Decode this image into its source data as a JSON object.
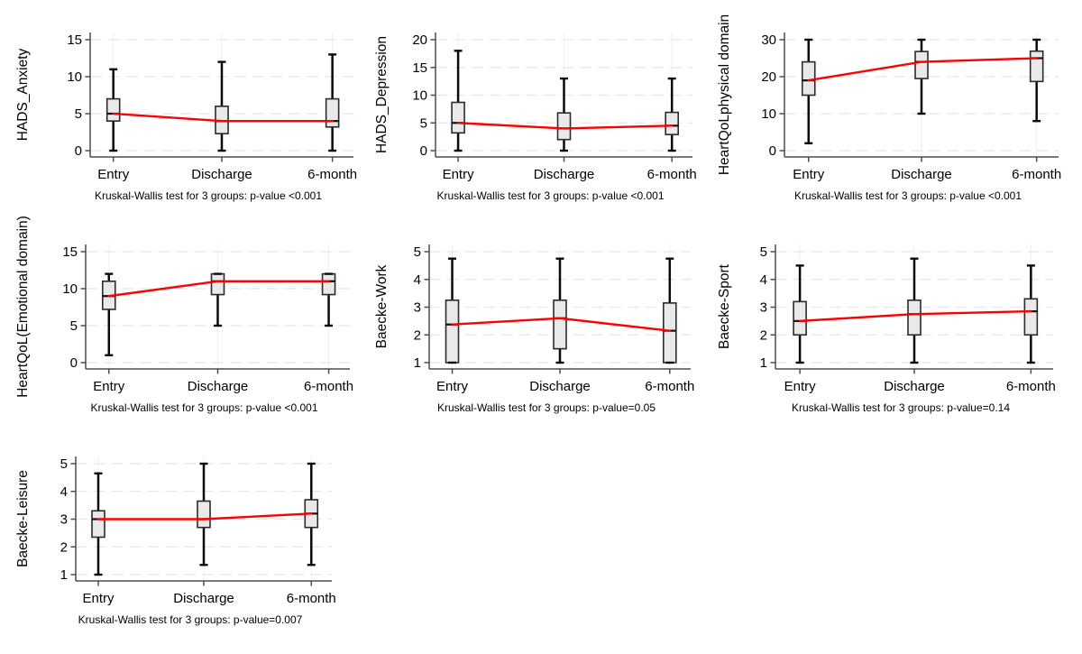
{
  "page": {
    "background": "#ffffff"
  },
  "colors": {
    "box_fill": "#e9e9e9",
    "box_stroke": "#2b2b2b",
    "whisker": "#0a0a0a",
    "median": "#111111",
    "median_trend": "#ff0000",
    "grid_horizontal": "#e7e7e7",
    "grid_vertical": "#efefef",
    "axis": "#4d4d4d",
    "text": "#000000"
  },
  "chart_data": [
    {
      "type": "boxplot",
      "ylabel": "HADS_Anxiety",
      "categories": [
        "Entry",
        "Discharge",
        "6-month"
      ],
      "yticks": [
        0,
        5,
        10,
        15
      ],
      "ylim": [
        -0.9,
        16
      ],
      "grid": true,
      "caption": "Kruskal-Wallis test for 3 groups: p-value <0.001",
      "boxes": [
        {
          "category": "Entry",
          "low": 0,
          "q1": 4,
          "median": 5,
          "q3": 7,
          "high": 11
        },
        {
          "category": "Discharge",
          "low": 0,
          "q1": 2.3,
          "median": 4,
          "q3": 6,
          "high": 12
        },
        {
          "category": "6-month",
          "low": 0,
          "q1": 3.2,
          "median": 4,
          "q3": 7,
          "high": 13
        }
      ],
      "median_trend": [
        5,
        4,
        4
      ]
    },
    {
      "type": "boxplot",
      "ylabel": "HADS_Depression",
      "categories": [
        "Entry",
        "Discharge",
        "6-month"
      ],
      "yticks": [
        0,
        5,
        10,
        15,
        20
      ],
      "ylim": [
        -1.2,
        21.3
      ],
      "grid": true,
      "caption": "Kruskal-Wallis test for 3 groups: p-value <0.001",
      "boxes": [
        {
          "category": "Entry",
          "low": 0,
          "q1": 3.2,
          "median": 5,
          "q3": 8.7,
          "high": 18
        },
        {
          "category": "Discharge",
          "low": 0,
          "q1": 2,
          "median": 4,
          "q3": 6.8,
          "high": 13
        },
        {
          "category": "6-month",
          "low": 0,
          "q1": 2.9,
          "median": 4.5,
          "q3": 6.9,
          "high": 13
        }
      ],
      "median_trend": [
        5,
        4,
        4.5
      ]
    },
    {
      "type": "boxplot",
      "ylabel": "HeartQoLphysical domain",
      "categories": [
        "Entry",
        "Discharge",
        "6-month"
      ],
      "yticks": [
        0,
        10,
        20,
        30
      ],
      "ylim": [
        -1.8,
        32
      ],
      "grid": true,
      "caption": "Kruskal-Wallis test for 3 groups: p-value <0.001",
      "boxes": [
        {
          "category": "Entry",
          "low": 2,
          "q1": 15,
          "median": 19,
          "q3": 24,
          "high": 30
        },
        {
          "category": "Discharge",
          "low": 10,
          "q1": 19.5,
          "median": 24,
          "q3": 26.8,
          "high": 30
        },
        {
          "category": "6-month",
          "low": 8,
          "q1": 18.7,
          "median": 25,
          "q3": 26.9,
          "high": 30
        }
      ],
      "median_trend": [
        19,
        24,
        25
      ]
    },
    {
      "type": "boxplot",
      "ylabel": "HeartQoL(Emotional domain)",
      "categories": [
        "Entry",
        "Discharge",
        "6-month"
      ],
      "yticks": [
        0,
        5,
        10,
        15
      ],
      "ylim": [
        -0.9,
        16
      ],
      "grid": true,
      "caption": "Kruskal-Wallis test for 3 groups: p-value <0.001",
      "boxes": [
        {
          "category": "Entry",
          "low": 1,
          "q1": 7.2,
          "median": 9,
          "q3": 11,
          "high": 12
        },
        {
          "category": "Discharge",
          "low": 5,
          "q1": 9.2,
          "median": 11,
          "q3": 12,
          "high": 12
        },
        {
          "category": "6-month",
          "low": 5,
          "q1": 9.2,
          "median": 11,
          "q3": 12,
          "high": 12
        }
      ],
      "median_trend": [
        9,
        11,
        11
      ]
    },
    {
      "type": "boxplot",
      "ylabel": "Baecke-Work",
      "categories": [
        "Entry",
        "Discharge",
        "6-month"
      ],
      "yticks": [
        1,
        2,
        3,
        4,
        5
      ],
      "ylim": [
        0.76,
        5.26
      ],
      "grid": true,
      "caption": "Kruskal-Wallis test for 3 groups: p-value=0.05",
      "boxes": [
        {
          "category": "Entry",
          "low": 1,
          "q1": 1,
          "median": 2.375,
          "q3": 3.25,
          "high": 4.75
        },
        {
          "category": "Discharge",
          "low": 1,
          "q1": 1.5,
          "median": 2.6,
          "q3": 3.25,
          "high": 4.75
        },
        {
          "category": "6-month",
          "low": 1,
          "q1": 1,
          "median": 2.15,
          "q3": 3.15,
          "high": 4.75
        }
      ],
      "median_trend": [
        2.375,
        2.6,
        2.15
      ]
    },
    {
      "type": "boxplot",
      "ylabel": "Baecke-Sport",
      "categories": [
        "Entry",
        "Discharge",
        "6-month"
      ],
      "yticks": [
        1,
        2,
        3,
        4,
        5
      ],
      "ylim": [
        0.76,
        5.26
      ],
      "grid": true,
      "caption": "Kruskal-Wallis test for 3 groups: p-value=0.14",
      "boxes": [
        {
          "category": "Entry",
          "low": 1,
          "q1": 2,
          "median": 2.5,
          "q3": 3.2,
          "high": 4.5
        },
        {
          "category": "Discharge",
          "low": 1,
          "q1": 2,
          "median": 2.75,
          "q3": 3.25,
          "high": 4.75
        },
        {
          "category": "6-month",
          "low": 1,
          "q1": 2,
          "median": 2.85,
          "q3": 3.3,
          "high": 4.5
        }
      ],
      "median_trend": [
        2.5,
        2.75,
        2.85
      ]
    },
    {
      "type": "boxplot",
      "ylabel": "Baecke-Leisure",
      "categories": [
        "Entry",
        "Discharge",
        "6-month"
      ],
      "yticks": [
        1,
        2,
        3,
        4,
        5
      ],
      "ylim": [
        0.76,
        5.26
      ],
      "grid": true,
      "caption": "Kruskal-Wallis test for 3 groups: p-value=0.007",
      "boxes": [
        {
          "category": "Entry",
          "low": 1,
          "q1": 2.35,
          "median": 3,
          "q3": 3.3,
          "high": 4.65
        },
        {
          "category": "Discharge",
          "low": 1.35,
          "q1": 2.7,
          "median": 3,
          "q3": 3.65,
          "high": 5
        },
        {
          "category": "6-month",
          "low": 1.35,
          "q1": 2.7,
          "median": 3.2,
          "q3": 3.7,
          "high": 5
        }
      ],
      "median_trend": [
        3,
        3,
        3.2
      ]
    }
  ]
}
